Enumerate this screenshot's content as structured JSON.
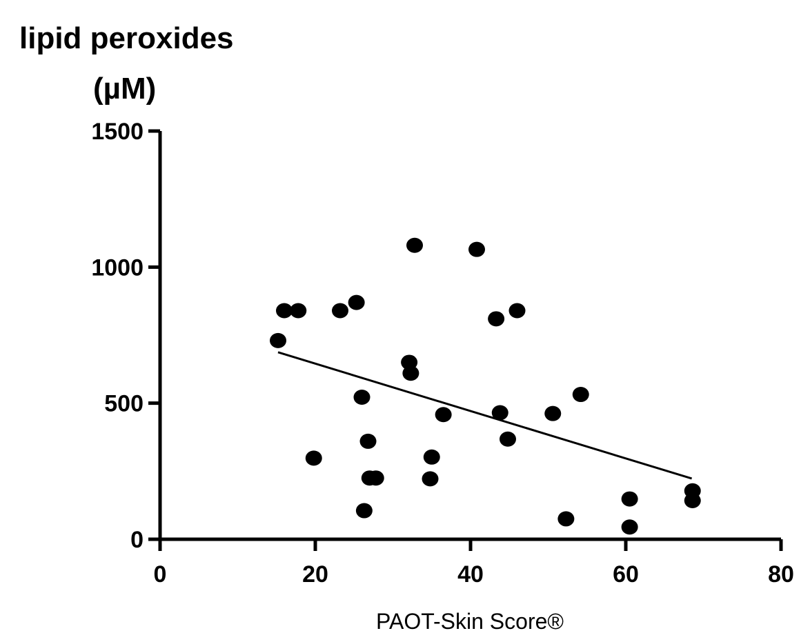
{
  "chart_data": {
    "type": "scatter",
    "ylabel_line1": "lipid peroxides",
    "ylabel_line2": "(µM)",
    "xlabel": "PAOT-Skin Score®",
    "xlim": [
      0,
      80
    ],
    "ylim": [
      0,
      1500
    ],
    "xticks": [
      0,
      20,
      40,
      60,
      80
    ],
    "yticks": [
      0,
      500,
      1000,
      1500
    ],
    "grid": false,
    "legend": "none",
    "marker_color": "#000000",
    "points": [
      {
        "x": 15.2,
        "y": 730
      },
      {
        "x": 16.0,
        "y": 840
      },
      {
        "x": 17.8,
        "y": 840
      },
      {
        "x": 19.8,
        "y": 298
      },
      {
        "x": 23.2,
        "y": 840
      },
      {
        "x": 25.3,
        "y": 870
      },
      {
        "x": 26.0,
        "y": 522
      },
      {
        "x": 26.3,
        "y": 105
      },
      {
        "x": 26.8,
        "y": 360
      },
      {
        "x": 27.0,
        "y": 225
      },
      {
        "x": 27.8,
        "y": 225
      },
      {
        "x": 32.1,
        "y": 650
      },
      {
        "x": 32.3,
        "y": 610
      },
      {
        "x": 32.8,
        "y": 1080
      },
      {
        "x": 34.8,
        "y": 222
      },
      {
        "x": 35.0,
        "y": 302
      },
      {
        "x": 36.5,
        "y": 458
      },
      {
        "x": 40.8,
        "y": 1065
      },
      {
        "x": 43.3,
        "y": 810
      },
      {
        "x": 43.8,
        "y": 465
      },
      {
        "x": 44.8,
        "y": 368
      },
      {
        "x": 46.0,
        "y": 840
      },
      {
        "x": 50.6,
        "y": 462
      },
      {
        "x": 52.3,
        "y": 75
      },
      {
        "x": 54.2,
        "y": 532
      },
      {
        "x": 60.5,
        "y": 148
      },
      {
        "x": 60.5,
        "y": 45
      },
      {
        "x": 68.6,
        "y": 178
      },
      {
        "x": 68.6,
        "y": 142
      }
    ],
    "trendline": {
      "x": [
        15.2,
        68.5
      ],
      "y": [
        687,
        223
      ]
    }
  }
}
